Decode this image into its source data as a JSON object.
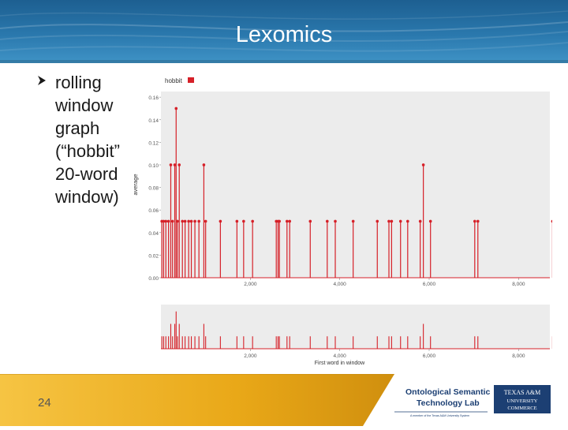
{
  "slide": {
    "title": "Lexomics",
    "bullet_lines": [
      "rolling",
      "window",
      "graph",
      "(“hobbit”",
      "20-word",
      "window)"
    ],
    "page_number": "24"
  },
  "logos": {
    "lab_line1": "Ontological Semantic",
    "lab_line2": "Technology Lab",
    "lab_subtitle": "A member of the Texas A&M University System",
    "tamu_line1": "TEXAS A&M",
    "tamu_line2": "UNIVERSITY",
    "tamu_line3": "COMMERCE"
  },
  "colors": {
    "header": "#2a78ad",
    "series": "#d62028",
    "plot_bg": "#ececec",
    "footer_gold": "#f0b51c",
    "logo_navy": "#1c3f73"
  },
  "chart_data": [
    {
      "type": "line",
      "legend": [
        "hobbit"
      ],
      "ylabel": "average",
      "xlabel": "",
      "xlim": [
        0,
        8700
      ],
      "ylim": [
        0,
        0.165
      ],
      "yticks": [
        "0.16",
        "0.14",
        "0.12",
        "0.10",
        "0.08",
        "0.06",
        "0.04",
        "0.02",
        "0.00"
      ],
      "xticks": [
        "2,000",
        "4,000",
        "6,000",
        "8,000"
      ],
      "grid": false,
      "series": [
        {
          "name": "hobbit",
          "spikes": [
            [
              20,
              0.05
            ],
            [
              60,
              0.05
            ],
            [
              110,
              0.05
            ],
            [
              170,
              0.05
            ],
            [
              220,
              0.1
            ],
            [
              260,
              0.05
            ],
            [
              310,
              0.1
            ],
            [
              340,
              0.15
            ],
            [
              370,
              0.05
            ],
            [
              410,
              0.1
            ],
            [
              480,
              0.05
            ],
            [
              540,
              0.05
            ],
            [
              620,
              0.05
            ],
            [
              680,
              0.05
            ],
            [
              760,
              0.05
            ],
            [
              850,
              0.05
            ],
            [
              960,
              0.1
            ],
            [
              1000,
              0.05
            ],
            [
              1330,
              0.05
            ],
            [
              1700,
              0.05
            ],
            [
              1850,
              0.05
            ],
            [
              2050,
              0.05
            ],
            [
              2580,
              0.05
            ],
            [
              2620,
              0.05
            ],
            [
              2650,
              0.05
            ],
            [
              2820,
              0.05
            ],
            [
              2880,
              0.05
            ],
            [
              3340,
              0.05
            ],
            [
              3720,
              0.05
            ],
            [
              3900,
              0.05
            ],
            [
              4300,
              0.05
            ],
            [
              4840,
              0.05
            ],
            [
              5100,
              0.05
            ],
            [
              5160,
              0.05
            ],
            [
              5360,
              0.05
            ],
            [
              5520,
              0.05
            ],
            [
              5800,
              0.05
            ],
            [
              5870,
              0.1
            ],
            [
              6030,
              0.05
            ],
            [
              7020,
              0.05
            ],
            [
              7090,
              0.05
            ],
            [
              8760,
              0.05
            ]
          ]
        }
      ]
    },
    {
      "type": "line",
      "xlabel": "First word in window",
      "xlim": [
        0,
        8700
      ],
      "xticks": [
        "2,000",
        "4,000",
        "6,000",
        "8,000"
      ],
      "note": "overview / navigator strip of same series"
    }
  ]
}
